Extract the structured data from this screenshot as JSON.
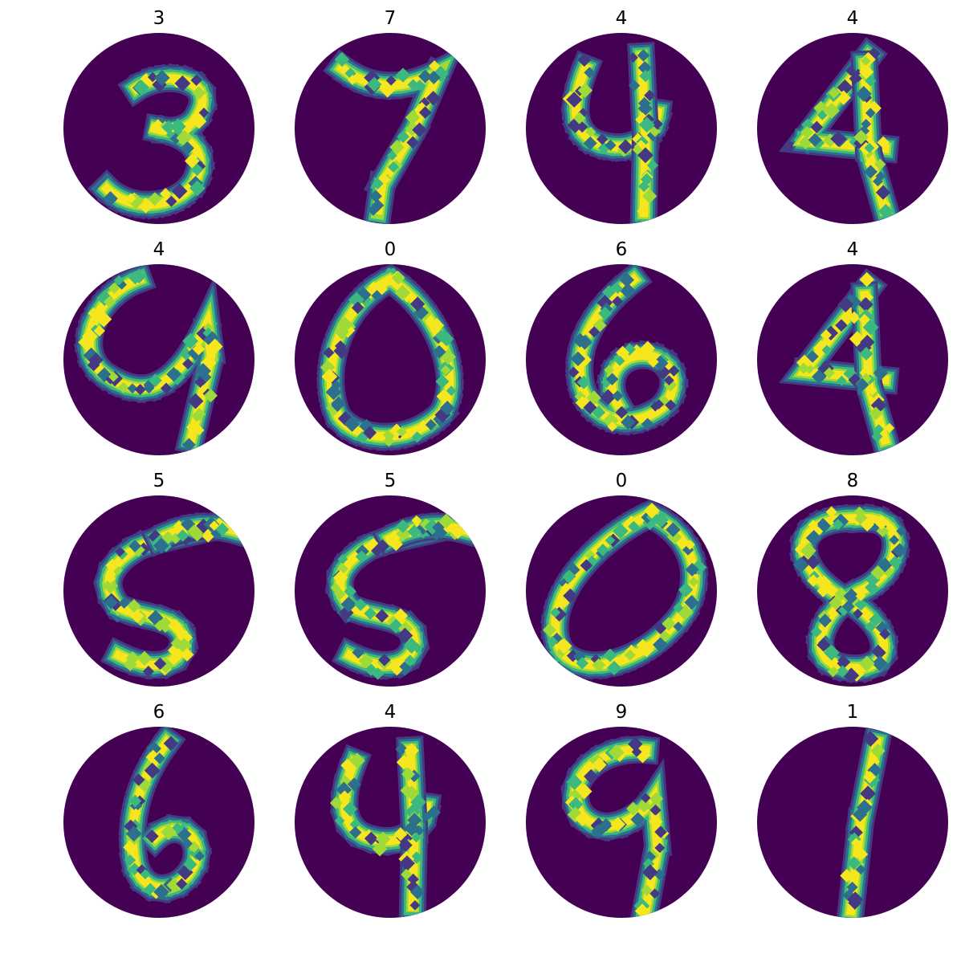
{
  "colors": {
    "background": "#440154",
    "dim": "#443a83",
    "teal": "#2d708e",
    "green": "#3bb97f",
    "lime": "#a0da39",
    "yellow": "#f5e61f"
  },
  "panels": [
    {
      "label": "3",
      "digit": "three"
    },
    {
      "label": "7",
      "digit": "seven"
    },
    {
      "label": "4",
      "digit": "four-open"
    },
    {
      "label": "4",
      "digit": "four-closed"
    },
    {
      "label": "4",
      "digit": "four-loop"
    },
    {
      "label": "0",
      "digit": "zero"
    },
    {
      "label": "6",
      "digit": "six"
    },
    {
      "label": "4",
      "digit": "four-closed"
    },
    {
      "label": "5",
      "digit": "five"
    },
    {
      "label": "5",
      "digit": "five"
    },
    {
      "label": "0",
      "digit": "zero-tilted"
    },
    {
      "label": "8",
      "digit": "eight"
    },
    {
      "label": "6",
      "digit": "six"
    },
    {
      "label": "4",
      "digit": "four-open"
    },
    {
      "label": "9",
      "digit": "nine"
    },
    {
      "label": "1",
      "digit": "one"
    }
  ]
}
